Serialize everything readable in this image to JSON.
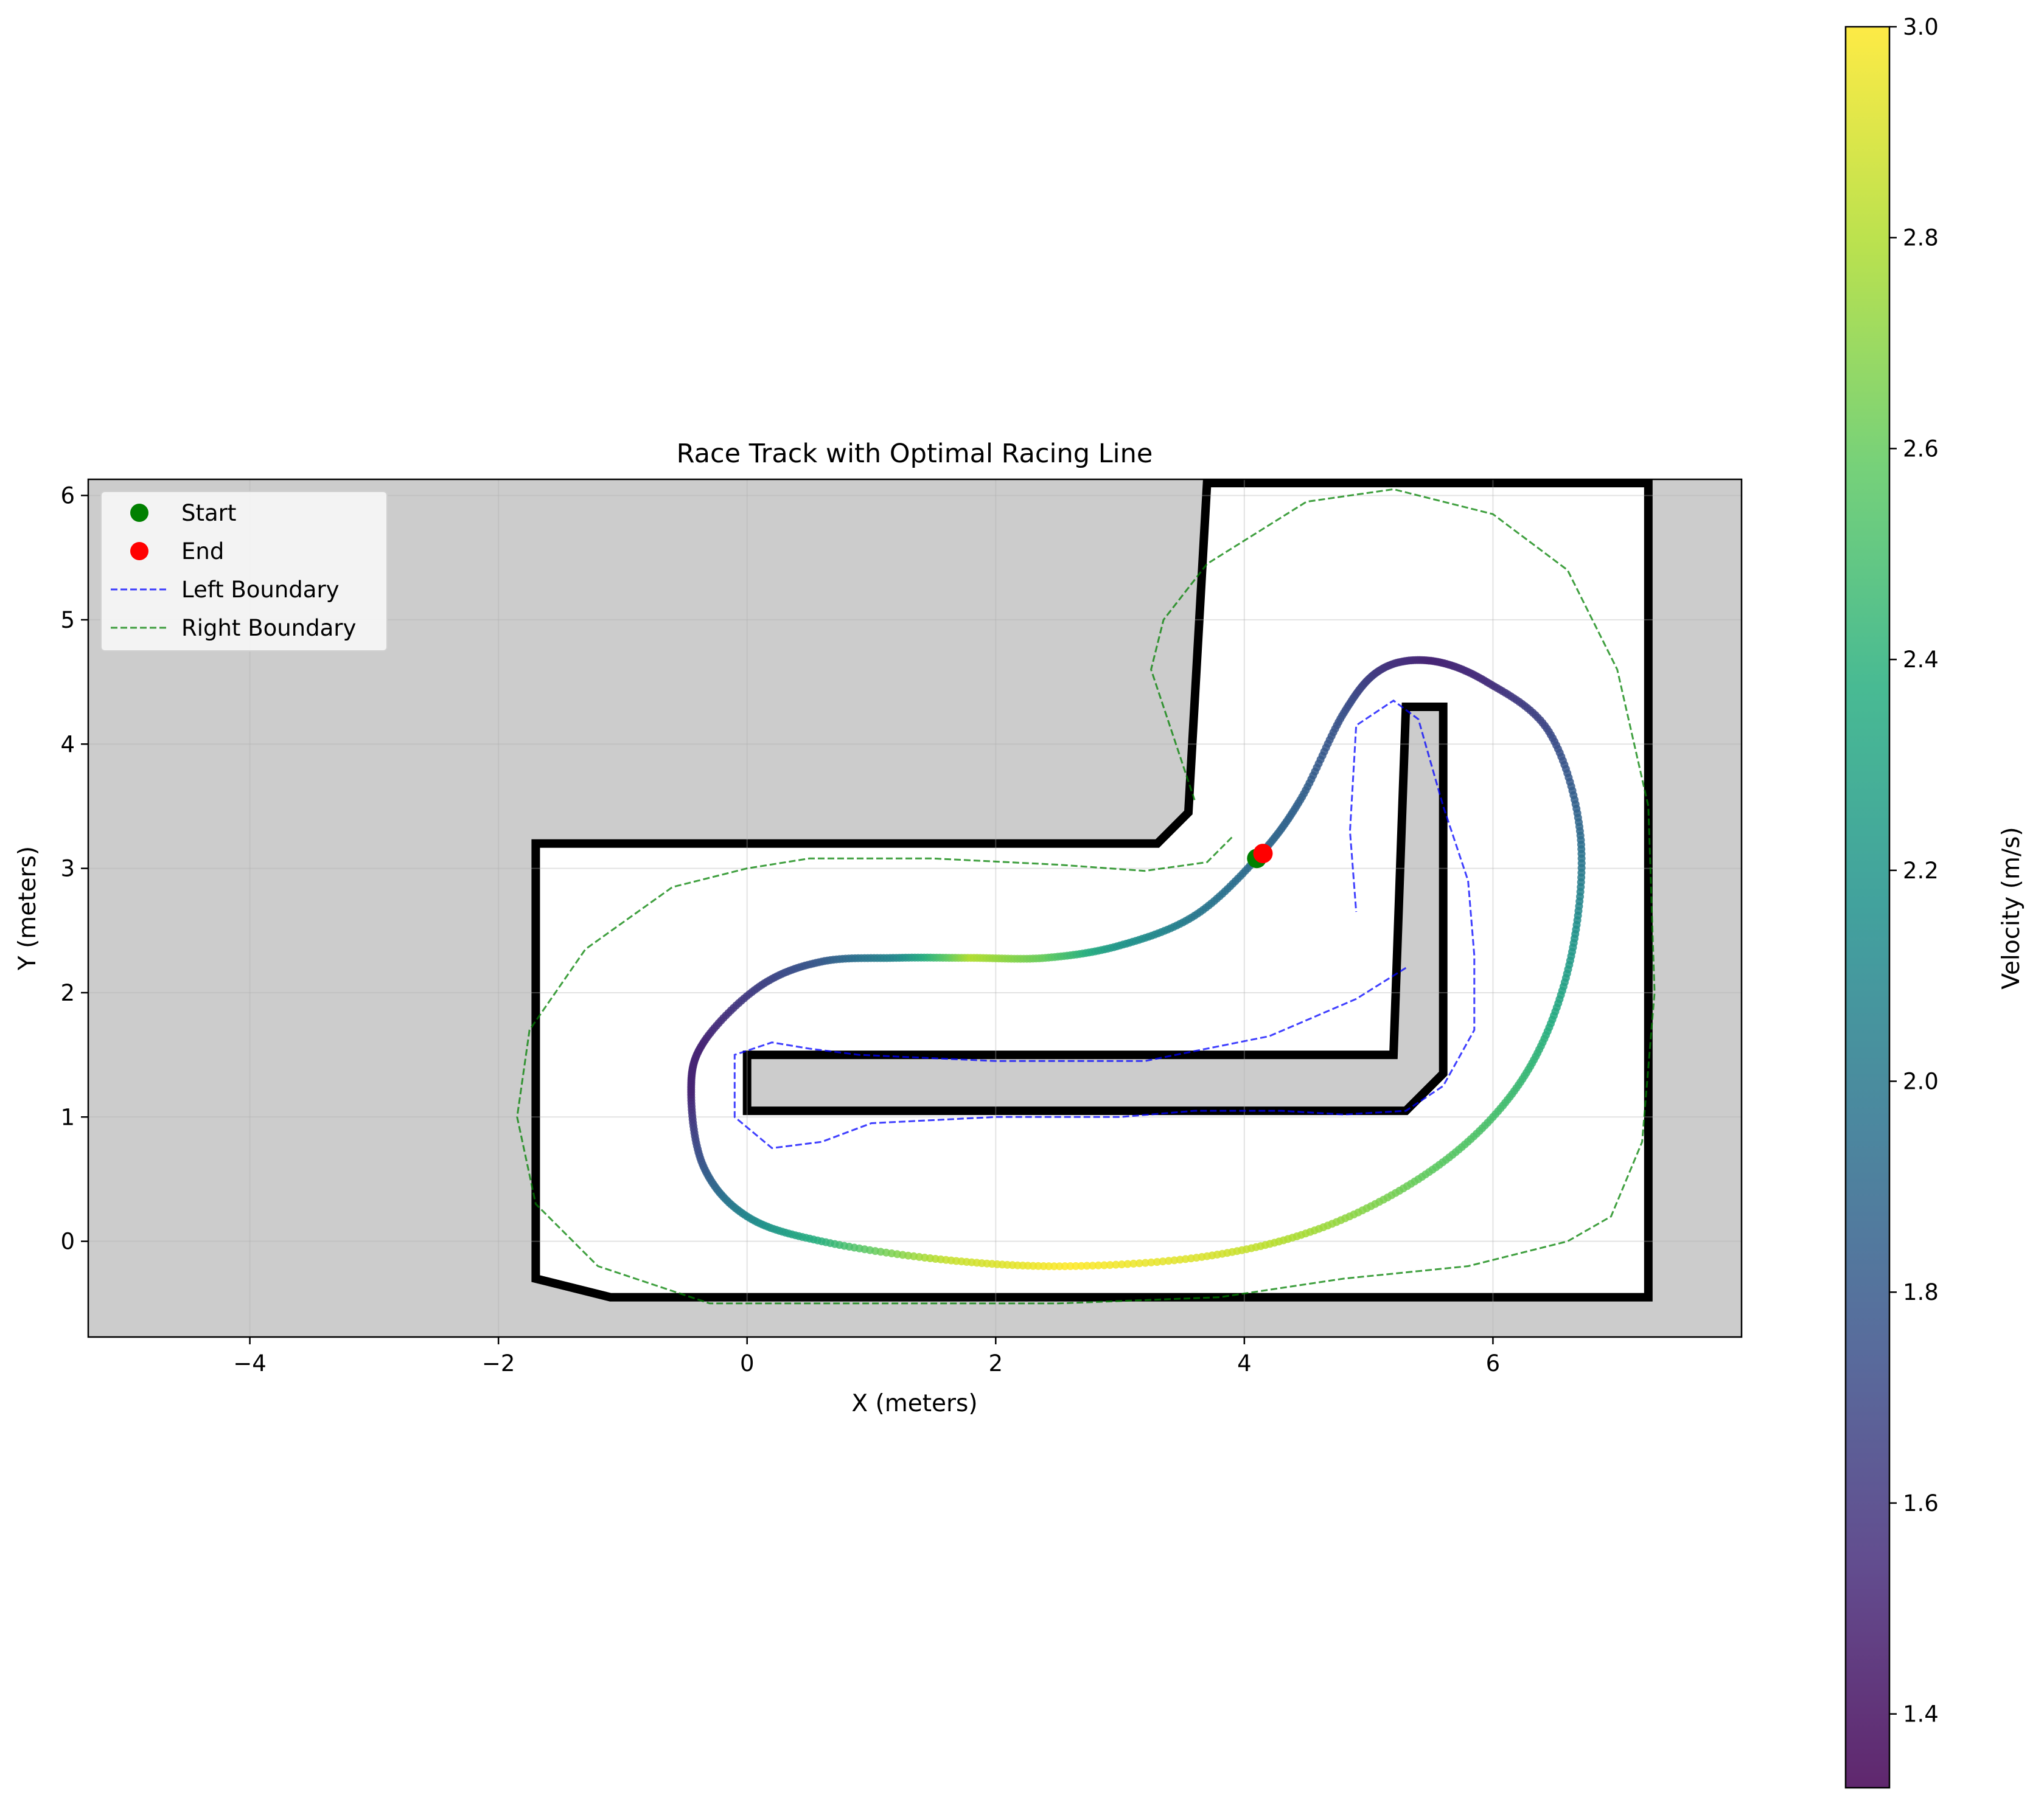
{
  "chart_data": {
    "type": "scatter",
    "title": "Race Track with Optimal Racing Line",
    "xlabel": "X (meters)",
    "ylabel": "Y (meters)",
    "xlim": [
      -5.3,
      8.0
    ],
    "ylim": [
      -0.77,
      6.13
    ],
    "xticks": [
      -4,
      -2,
      0,
      2,
      4,
      6
    ],
    "yticks": [
      0,
      1,
      2,
      3,
      4,
      5,
      6
    ],
    "grid": true,
    "legend_placement": "top-left",
    "legend": [
      {
        "label": "Start",
        "kind": "marker",
        "color": "#008000"
      },
      {
        "label": "End",
        "kind": "marker",
        "color": "#ff0000"
      },
      {
        "label": "Left Boundary",
        "kind": "dashed-line",
        "color": "#0000ff"
      },
      {
        "label": "Right Boundary",
        "kind": "dashed-line",
        "color": "#008000"
      }
    ],
    "colorbar": {
      "label": "Velocity (m/s)",
      "min": 1.33,
      "max": 3.0,
      "ticks": [
        "1.4",
        "1.6",
        "1.8",
        "2.0",
        "2.2",
        "2.4",
        "2.6",
        "2.8",
        "3.0"
      ],
      "colormap": "viridis"
    },
    "map": {
      "unknown_color": "#cccccc",
      "wall_color": "#000000",
      "free_color": "#ffffff",
      "free_region": [
        [
          -1.7,
          3.2
        ],
        [
          3.3,
          3.2
        ],
        [
          3.55,
          3.45
        ],
        [
          3.7,
          6.1
        ],
        [
          7.25,
          6.1
        ],
        [
          7.25,
          -0.45
        ],
        [
          -1.1,
          -0.45
        ],
        [
          -1.7,
          -0.3
        ]
      ],
      "inner_island": [
        [
          0.0,
          1.5
        ],
        [
          5.2,
          1.5
        ],
        [
          5.3,
          4.3
        ],
        [
          5.6,
          4.3
        ],
        [
          5.6,
          1.35
        ],
        [
          5.3,
          1.05
        ],
        [
          0.0,
          1.05
        ]
      ]
    },
    "start": {
      "x": 4.1,
      "y": 3.08
    },
    "end": {
      "x": 4.15,
      "y": 3.12
    },
    "racing_line": {
      "points": [
        {
          "x": 4.1,
          "y": 3.08,
          "v": 1.9
        },
        {
          "x": 4.45,
          "y": 3.55,
          "v": 1.85
        },
        {
          "x": 4.8,
          "y": 4.25,
          "v": 1.75
        },
        {
          "x": 5.1,
          "y": 4.6,
          "v": 1.6
        },
        {
          "x": 5.5,
          "y": 4.67,
          "v": 1.5
        },
        {
          "x": 5.95,
          "y": 4.5,
          "v": 1.55
        },
        {
          "x": 6.45,
          "y": 4.1,
          "v": 1.7
        },
        {
          "x": 6.7,
          "y": 3.3,
          "v": 1.9
        },
        {
          "x": 6.65,
          "y": 2.4,
          "v": 2.2
        },
        {
          "x": 6.4,
          "y": 1.6,
          "v": 2.4
        },
        {
          "x": 6.0,
          "y": 1.0,
          "v": 2.5
        },
        {
          "x": 5.4,
          "y": 0.5,
          "v": 2.6
        },
        {
          "x": 4.6,
          "y": 0.1,
          "v": 2.75
        },
        {
          "x": 3.7,
          "y": -0.12,
          "v": 2.9
        },
        {
          "x": 2.6,
          "y": -0.2,
          "v": 3.0
        },
        {
          "x": 1.6,
          "y": -0.15,
          "v": 2.85
        },
        {
          "x": 0.6,
          "y": 0.0,
          "v": 2.4
        },
        {
          "x": 0.0,
          "y": 0.2,
          "v": 2.1
        },
        {
          "x": -0.35,
          "y": 0.6,
          "v": 1.8
        },
        {
          "x": -0.45,
          "y": 1.2,
          "v": 1.5
        },
        {
          "x": -0.35,
          "y": 1.6,
          "v": 1.5
        },
        {
          "x": 0.1,
          "y": 2.05,
          "v": 1.65
        },
        {
          "x": 0.6,
          "y": 2.25,
          "v": 1.8
        },
        {
          "x": 1.2,
          "y": 2.28,
          "v": 2.1
        },
        {
          "x": 1.8,
          "y": 2.28,
          "v": 2.8
        },
        {
          "x": 2.4,
          "y": 2.28,
          "v": 2.6
        },
        {
          "x": 3.0,
          "y": 2.38,
          "v": 2.2
        },
        {
          "x": 3.6,
          "y": 2.62,
          "v": 2.0
        },
        {
          "x": 4.1,
          "y": 3.08,
          "v": 1.9
        }
      ]
    },
    "left_boundary": {
      "x": [
        5.3,
        4.9,
        4.2,
        3.2,
        2.0,
        0.9,
        0.5,
        0.2,
        -0.1,
        -0.1,
        0.2,
        0.6,
        1.0,
        2.0,
        3.0,
        3.6,
        4.3,
        4.8,
        5.3,
        5.6,
        5.85,
        5.85,
        5.8,
        5.6,
        5.4,
        5.2,
        4.9,
        4.85,
        4.9
      ],
      "y": [
        2.2,
        1.95,
        1.65,
        1.45,
        1.45,
        1.5,
        1.55,
        1.6,
        1.5,
        1.0,
        0.75,
        0.8,
        0.95,
        1.0,
        1.0,
        1.05,
        1.05,
        1.02,
        1.05,
        1.25,
        1.7,
        2.3,
        2.9,
        3.5,
        4.2,
        4.35,
        4.15,
        3.3,
        2.65
      ]
    },
    "right_boundary": {
      "x": [
        3.9,
        3.7,
        3.2,
        2.5,
        1.5,
        0.5,
        0.0,
        -0.6,
        -1.3,
        -1.75,
        -1.85,
        -1.7,
        -1.2,
        -0.3,
        1.0,
        2.5,
        3.8,
        4.8,
        5.8,
        6.6,
        6.95,
        7.2,
        7.3,
        7.25,
        7.0,
        6.6,
        6.0,
        5.2,
        4.5,
        3.7,
        3.35,
        3.25,
        3.45,
        3.6
      ],
      "y": [
        3.25,
        3.05,
        2.98,
        3.03,
        3.08,
        3.08,
        3.0,
        2.85,
        2.35,
        1.7,
        1.0,
        0.3,
        -0.2,
        -0.5,
        -0.5,
        -0.5,
        -0.45,
        -0.3,
        -0.2,
        0.0,
        0.2,
        0.8,
        2.0,
        3.5,
        4.6,
        5.4,
        5.85,
        6.05,
        5.95,
        5.45,
        5.0,
        4.6,
        4.0,
        3.55
      ]
    }
  }
}
